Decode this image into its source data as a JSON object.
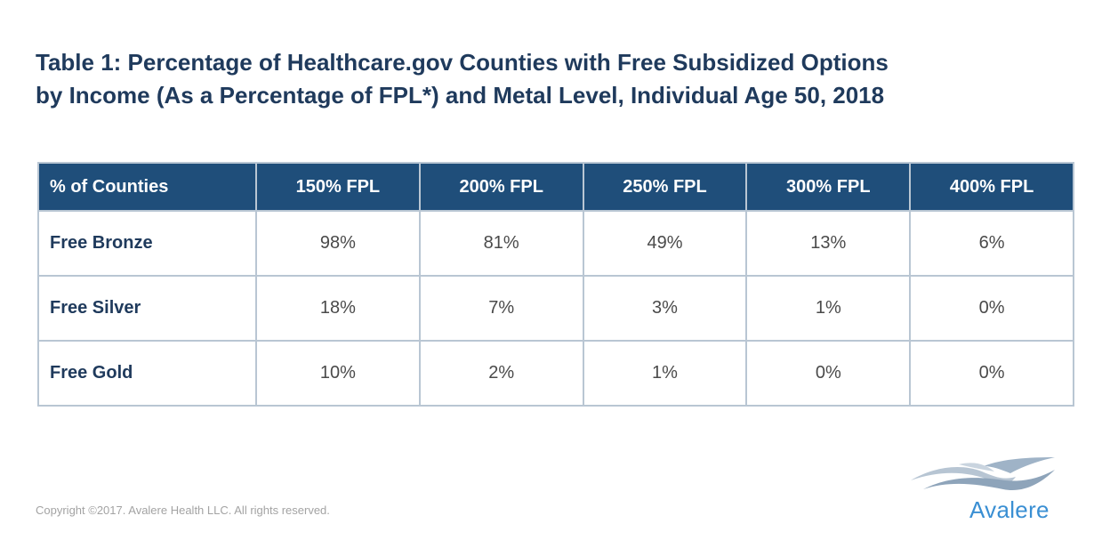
{
  "title_lines": [
    "Table 1: Percentage of Healthcare.gov Counties with Free Subsidized Options",
    "by Income (As a Percentage of FPL*) and Metal Level, Individual Age 50, 2018"
  ],
  "chart_data": {
    "type": "table",
    "title": "Table 1: Percentage of Healthcare.gov Counties with Free Subsidized Options by Income (As a Percentage of FPL*) and Metal Level, Individual Age 50, 2018",
    "columns": [
      "% of Counties",
      "150% FPL",
      "200% FPL",
      "250% FPL",
      "300% FPL",
      "400% FPL"
    ],
    "rows": [
      {
        "label": "Free Bronze",
        "values": [
          "98%",
          "81%",
          "49%",
          "13%",
          "6%"
        ]
      },
      {
        "label": "Free Silver",
        "values": [
          "18%",
          "7%",
          "3%",
          "1%",
          "0%"
        ]
      },
      {
        "label": "Free Gold",
        "values": [
          "10%",
          "2%",
          "1%",
          "0%",
          "0%"
        ]
      }
    ]
  },
  "footer": {
    "copyright": "Copyright ©2017. Avalere Health LLC. All rights reserved."
  },
  "logo": {
    "text": "Avalere",
    "icon": "avalere-wave-logo-icon",
    "color": "#3a8fd3"
  },
  "colors": {
    "title": "#1f3a5c",
    "header_bg": "#1f4e7a",
    "border": "#b9c6d3",
    "cell_text": "#4a4a4a"
  }
}
